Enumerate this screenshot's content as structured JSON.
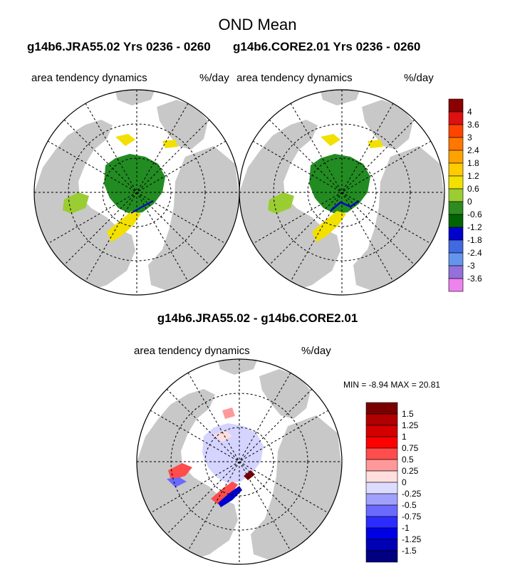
{
  "header": {
    "title": "OND Mean",
    "left_case": "g14b6.JRA55.02  Yrs 0236 - 0260",
    "right_case": "g14b6.CORE2.01  Yrs 0236 - 0260"
  },
  "panels": {
    "left": {
      "variable": "area tendency dynamics",
      "units": "%/day"
    },
    "right": {
      "variable": "area tendency dynamics",
      "units": "%/day"
    },
    "diff": {
      "title": "g14b6.JRA55.02 - g14b6.CORE2.01",
      "variable": "area tendency dynamics",
      "units": "%/day",
      "min_max": "MIN =  -8.94 MAX =  20.81"
    }
  },
  "colorbar_top": {
    "labels": [
      "4",
      "3.6",
      "3",
      "2.4",
      "1.8",
      "1.2",
      "0.6",
      "0",
      "-0.6",
      "-1.2",
      "-1.8",
      "-2.4",
      "-3",
      "-3.6"
    ],
    "colors": [
      "#8b0000",
      "#dd1111",
      "#ff4400",
      "#ff7700",
      "#ffa200",
      "#ffcc00",
      "#f2e000",
      "#9acd32",
      "#2e8b22",
      "#006400",
      "#0000cd",
      "#4169e1",
      "#6495ed",
      "#9370db",
      "#ee82ee"
    ]
  },
  "colorbar_diff": {
    "labels": [
      "1.5",
      "1.25",
      "1",
      "0.75",
      "0.5",
      "0.25",
      "0",
      "-0.25",
      "-0.5",
      "-0.75",
      "-1",
      "-1.25",
      "-1.5"
    ],
    "colors": [
      "#7a0000",
      "#b00000",
      "#d40000",
      "#ff0000",
      "#ff4c4c",
      "#ff9999",
      "#ffdede",
      "#dcdcff",
      "#a0a0ff",
      "#6a6aff",
      "#2c2cff",
      "#0000e6",
      "#0000b4",
      "#000080"
    ]
  },
  "map_colors": {
    "land": "#c8c8c8",
    "ocean": "#ffffff",
    "ice_interior": "#228b22",
    "ice_edge_pos": "#f2e000",
    "ice_edge_neg": "#0000cd",
    "diff_interior": "#d4d4ff"
  }
}
